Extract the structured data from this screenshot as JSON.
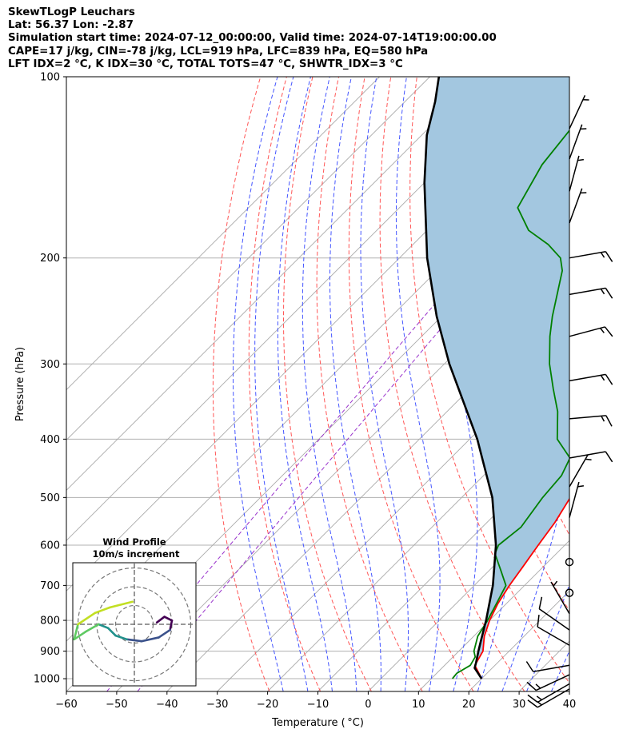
{
  "header": {
    "line1": "SkewTLogP Leuchars",
    "line2": "Lat: 56.37   Lon: -2.87",
    "line3": "Simulation start time: 2024-07-12_00:00:00, Valid time: 2024-07-14T19:00:00.00",
    "line4": "CAPE=17 j/kg, CIN=-78 j/kg, LCL=919 hPa, LFC=839 hPa, EQ=580 hPa",
    "line5": "LFT IDX=2 °C, K IDX=30 °C, TOTAL TOTS=47 °C, SHWTR_IDX=3 °C"
  },
  "chart_data": [
    {
      "type": "line",
      "subtype": "skew-t log-p",
      "xlabel": "Temperature ( °C)",
      "ylabel": "Pressure (hPa)",
      "xlim": [
        -60,
        40
      ],
      "ylim": [
        1050,
        100
      ],
      "y_scale": "log",
      "x_ticks": [
        -60,
        -50,
        -40,
        -30,
        -20,
        -10,
        0,
        10,
        20,
        30,
        40
      ],
      "x_tick_labels": [
        "−60",
        "−50",
        "−40",
        "−30",
        "−20",
        "−10",
        "0",
        "10",
        "20",
        "30",
        "40"
      ],
      "y_ticks": [
        1000,
        900,
        800,
        700,
        600,
        500,
        400,
        300,
        200,
        100
      ],
      "y_tick_labels": [
        "1000",
        "900",
        "800",
        "700",
        "600",
        "500",
        "400",
        "300",
        "200",
        "100"
      ],
      "grid": true,
      "series": [
        {
          "role": "temperature",
          "color": "#ff0000",
          "points": [
            [
              1000,
              20.0
            ],
            [
              950,
              16.0
            ],
            [
              900,
              14.8
            ],
            [
              850,
              12.1
            ],
            [
              800,
              10.0
            ],
            [
              750,
              8.3
            ],
            [
              700,
              7.0
            ],
            [
              650,
              5.9
            ],
            [
              600,
              4.7
            ],
            [
              550,
              3.5
            ],
            [
              500,
              1.6
            ],
            [
              450,
              -0.4
            ],
            [
              420,
              -2.6
            ],
            [
              400,
              -4.9
            ],
            [
              370,
              -8.7
            ],
            [
              340,
              -12.7
            ],
            [
              300,
              -17.7
            ],
            [
              270,
              -23.2
            ],
            [
              240,
              -29.8
            ],
            [
              220,
              -35.4
            ],
            [
              205,
              -40.3
            ],
            [
              180,
              -44.2
            ],
            [
              165,
              -48.9
            ],
            [
              155,
              -51.4
            ],
            [
              140,
              -53.3
            ],
            [
              125,
              -55.2
            ],
            [
              115,
              -57.3
            ],
            [
              100,
              -59.1
            ]
          ]
        },
        {
          "role": "dewpoint",
          "color": "#008000",
          "points": [
            [
              1000,
              14.2
            ],
            [
              980,
              14.0
            ],
            [
              950,
              15.1
            ],
            [
              920,
              14.4
            ],
            [
              900,
              13.0
            ],
            [
              850,
              10.8
            ],
            [
              800,
              9.6
            ],
            [
              750,
              8.0
            ],
            [
              700,
              6.3
            ],
            [
              660,
              2.2
            ],
            [
              620,
              -2.2
            ],
            [
              600,
              -3.2
            ],
            [
              560,
              -2.3
            ],
            [
              500,
              -3.9
            ],
            [
              460,
              -4.5
            ],
            [
              430,
              -6.3
            ],
            [
              400,
              -12.6
            ],
            [
              360,
              -18.0
            ],
            [
              330,
              -23.4
            ],
            [
              300,
              -29.1
            ],
            [
              270,
              -34.5
            ],
            [
              250,
              -38.0
            ],
            [
              210,
              -45.1
            ],
            [
              200,
              -48.0
            ],
            [
              190,
              -53.1
            ],
            [
              180,
              -59.8
            ],
            [
              165,
              -66.5
            ],
            [
              140,
              -70.2
            ],
            [
              120,
              -71.8
            ],
            [
              100,
              -74.6
            ]
          ]
        },
        {
          "role": "parcel",
          "color": "#000000",
          "points": [
            [
              1000,
              20.0
            ],
            [
              960,
              16.5
            ],
            [
              940,
              15.7
            ],
            [
              920,
              14.8
            ],
            [
              900,
              13.9
            ],
            [
              860,
              12.1
            ],
            [
              800,
              9.3
            ],
            [
              700,
              3.7
            ],
            [
              600,
              -3.7
            ],
            [
              500,
              -13.9
            ],
            [
              400,
              -28.5
            ],
            [
              300,
              -49.0
            ],
            [
              250,
              -61.0
            ],
            [
              200,
              -74.5
            ],
            [
              150,
              -90.0
            ],
            [
              125,
              -99.0
            ],
            [
              110,
              -104.0
            ],
            [
              100,
              -108.2
            ]
          ]
        }
      ],
      "cape_fill": {
        "color": "#a3c7e0",
        "between": [
          "parcel",
          "temperature"
        ]
      },
      "reference_lines": {
        "isotherms": {
          "color": "#aaaaaa",
          "values_c": [
            -120,
            -110,
            -100,
            -90,
            -80,
            -70,
            -60,
            -50,
            -40,
            -30,
            -20,
            -10,
            0,
            10,
            20,
            30,
            40
          ]
        },
        "dry_adiabats": {
          "color": "#ff5555",
          "theta_k": [
            250,
            260,
            270,
            280,
            290,
            300,
            310,
            320,
            330,
            340,
            350,
            360,
            370,
            380,
            390,
            400,
            410
          ]
        },
        "moist_adiabats": {
          "color": "#4455ff",
          "theta_w_c": [
            -20,
            -15,
            -10,
            -5,
            0,
            5,
            10,
            15,
            20,
            25,
            30,
            35
          ]
        },
        "mixing_ratio": {
          "color": "#9933cc",
          "w_gkg": [
            0.03,
            0.06
          ]
        }
      },
      "wind_barbs": [
        {
          "p": 1040,
          "speed_kt": 15,
          "dir_deg": 240
        },
        {
          "p": 1020,
          "speed_kt": 15,
          "dir_deg": 240
        },
        {
          "p": 985,
          "speed_kt": 15,
          "dir_deg": 245
        },
        {
          "p": 950,
          "speed_kt": 10,
          "dir_deg": 260
        },
        {
          "p": 880,
          "speed_kt": 10,
          "dir_deg": 300
        },
        {
          "p": 830,
          "speed_kt": 10,
          "dir_deg": 305
        },
        {
          "p": 780,
          "speed_kt": 5,
          "dir_deg": 330
        },
        {
          "p": 720,
          "speed_kt": 0,
          "dir_deg": 0
        },
        {
          "p": 640,
          "speed_kt": 0,
          "dir_deg": 0
        },
        {
          "p": 540,
          "speed_kt": 5,
          "dir_deg": 15
        },
        {
          "p": 480,
          "speed_kt": 5,
          "dir_deg": 30
        },
        {
          "p": 430,
          "speed_kt": 10,
          "dir_deg": 80
        },
        {
          "p": 370,
          "speed_kt": 15,
          "dir_deg": 85
        },
        {
          "p": 320,
          "speed_kt": 15,
          "dir_deg": 80
        },
        {
          "p": 270,
          "speed_kt": 15,
          "dir_deg": 75
        },
        {
          "p": 230,
          "speed_kt": 15,
          "dir_deg": 80
        },
        {
          "p": 200,
          "speed_kt": 15,
          "dir_deg": 80
        },
        {
          "p": 175,
          "speed_kt": 5,
          "dir_deg": 20
        },
        {
          "p": 155,
          "speed_kt": 5,
          "dir_deg": 15
        },
        {
          "p": 137,
          "speed_kt": 5,
          "dir_deg": 20
        },
        {
          "p": 122,
          "speed_kt": 5,
          "dir_deg": 25
        }
      ]
    },
    {
      "type": "hodograph",
      "title": "Wind Profile",
      "subtitle": "10m/s increment",
      "rings": [
        1,
        2,
        3
      ],
      "colormap": [
        "#440154",
        "#3b528b",
        "#21918c",
        "#5ec962",
        "#c2df23"
      ],
      "points": [
        [
          1.2,
          0.1
        ],
        [
          1.6,
          0.4
        ],
        [
          2.0,
          0.2
        ],
        [
          1.9,
          -0.3
        ],
        [
          1.3,
          -0.7
        ],
        [
          0.4,
          -0.9
        ],
        [
          -0.4,
          -0.8
        ],
        [
          -1.0,
          -0.6
        ],
        [
          -1.4,
          -0.2
        ],
        [
          -1.9,
          0.0
        ],
        [
          -2.6,
          -0.4
        ],
        [
          -3.2,
          -0.8
        ],
        [
          -3.0,
          0.0
        ],
        [
          -2.1,
          0.6
        ],
        [
          -1.3,
          0.9
        ],
        [
          -0.1,
          1.2
        ]
      ]
    }
  ]
}
